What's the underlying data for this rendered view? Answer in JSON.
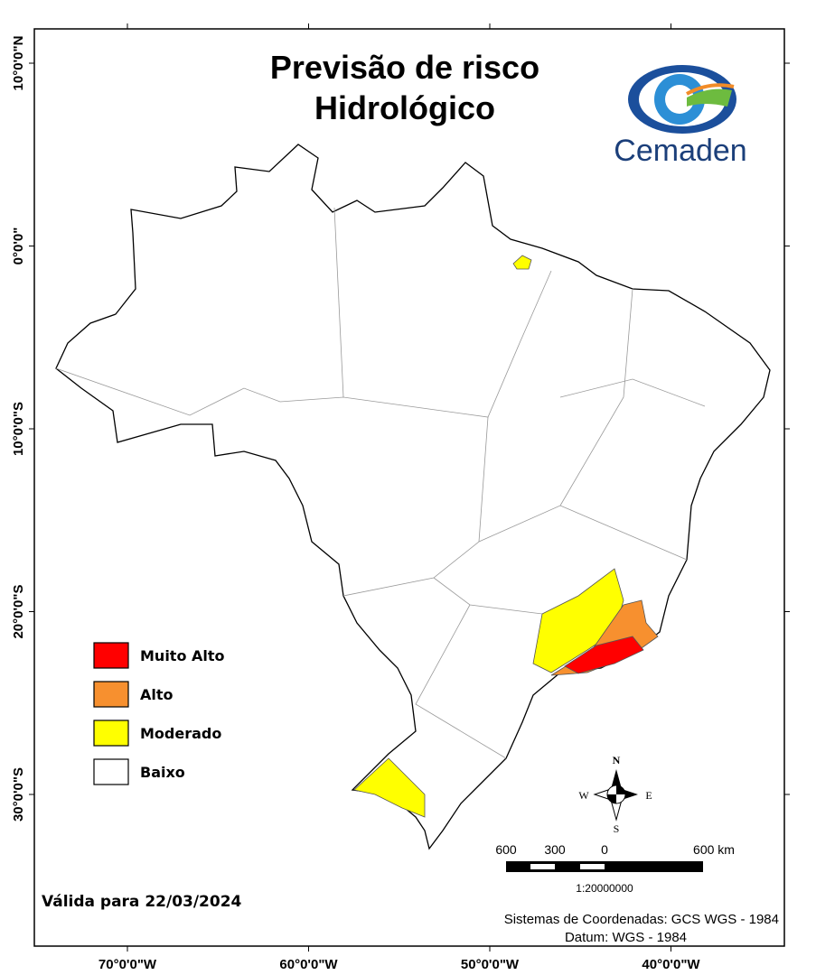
{
  "title": [
    "Previsão de risco",
    "Hidrológico"
  ],
  "logo": "Cemaden",
  "legend": [
    {
      "label": "Muito Alto",
      "color": "#ff0000"
    },
    {
      "label": "Alto",
      "color": "#f7902f"
    },
    {
      "label": "Moderado",
      "color": "#ffff00"
    },
    {
      "label": "Baixo",
      "color": "#ffffff"
    }
  ],
  "validity": "Válida para 22/03/2024",
  "latitude_labels": [
    "10°0'0\"N",
    "0°0'0\"",
    "10°0'0\"S",
    "20°0'0\"S",
    "30°0'0\"S"
  ],
  "longitude_labels": [
    "70°0'0\"W",
    "60°0'0\"W",
    "50°0'0\"W",
    "40°0'0\"W"
  ],
  "compass": {
    "north": "N",
    "south": "S",
    "east": "E",
    "west": "W"
  },
  "scale": {
    "labels": [
      "600",
      "300",
      "0",
      "600 km"
    ],
    "ratio": "1:20000000"
  },
  "footer": {
    "coordinate_system": "Sistemas de Coordenadas: GCS WGS - 1984",
    "datum": "Datum: WGS - 1984"
  }
}
